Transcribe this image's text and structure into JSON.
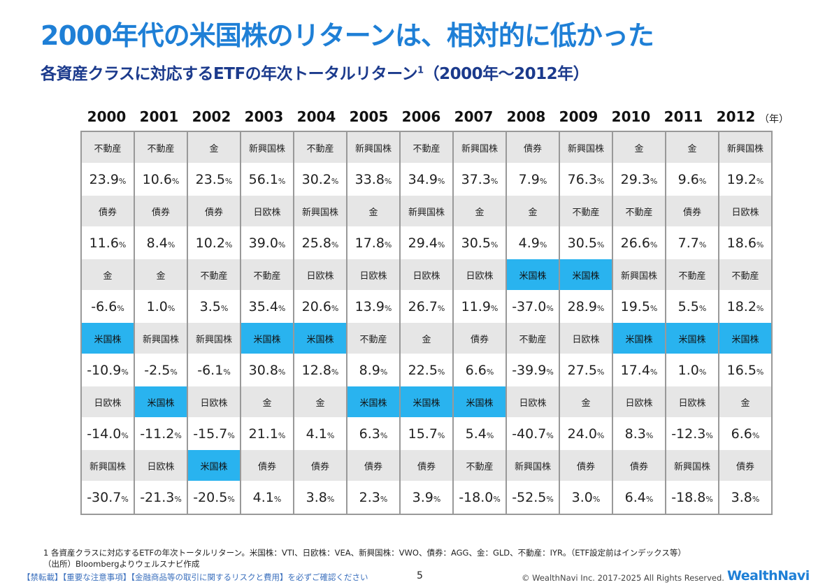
{
  "title": "2000年代の米国株のリターンは、相対的に低かった",
  "subtitle": "各資産クラスに対応するETFの年次トータルリターン",
  "subtitle_note": "1",
  "subtitle_range": "（2000年～2012年）",
  "year_unit": "（年）",
  "highlight_asset": "米国株",
  "highlight_color": "#29b3ef",
  "pct": "%",
  "years": [
    "2000",
    "2001",
    "2002",
    "2003",
    "2004",
    "2005",
    "2006",
    "2007",
    "2008",
    "2009",
    "2010",
    "2011",
    "2012"
  ],
  "columns": [
    [
      [
        "不動産",
        "23.9"
      ],
      [
        "債券",
        "11.6"
      ],
      [
        "金",
        "-6.6"
      ],
      [
        "米国株",
        "-10.9"
      ],
      [
        "日欧株",
        "-14.0"
      ],
      [
        "新興国株",
        "-30.7"
      ]
    ],
    [
      [
        "不動産",
        "10.6"
      ],
      [
        "債券",
        "8.4"
      ],
      [
        "金",
        "1.0"
      ],
      [
        "新興国株",
        "-2.5"
      ],
      [
        "米国株",
        "-11.2"
      ],
      [
        "日欧株",
        "-21.3"
      ]
    ],
    [
      [
        "金",
        "23.5"
      ],
      [
        "債券",
        "10.2"
      ],
      [
        "不動産",
        "3.5"
      ],
      [
        "新興国株",
        "-6.1"
      ],
      [
        "日欧株",
        "-15.7"
      ],
      [
        "米国株",
        "-20.5"
      ]
    ],
    [
      [
        "新興国株",
        "56.1"
      ],
      [
        "日欧株",
        "39.0"
      ],
      [
        "不動産",
        "35.4"
      ],
      [
        "米国株",
        "30.8"
      ],
      [
        "金",
        "21.1"
      ],
      [
        "債券",
        "4.1"
      ]
    ],
    [
      [
        "不動産",
        "30.2"
      ],
      [
        "新興国株",
        "25.8"
      ],
      [
        "日欧株",
        "20.6"
      ],
      [
        "米国株",
        "12.8"
      ],
      [
        "金",
        "4.1"
      ],
      [
        "債券",
        "3.8"
      ]
    ],
    [
      [
        "新興国株",
        "33.8"
      ],
      [
        "金",
        "17.8"
      ],
      [
        "日欧株",
        "13.9"
      ],
      [
        "不動産",
        "8.9"
      ],
      [
        "米国株",
        "6.3"
      ],
      [
        "債券",
        "2.3"
      ]
    ],
    [
      [
        "不動産",
        "34.9"
      ],
      [
        "新興国株",
        "29.4"
      ],
      [
        "日欧株",
        "26.7"
      ],
      [
        "金",
        "22.5"
      ],
      [
        "米国株",
        "15.7"
      ],
      [
        "債券",
        "3.9"
      ]
    ],
    [
      [
        "新興国株",
        "37.3"
      ],
      [
        "金",
        "30.5"
      ],
      [
        "日欧株",
        "11.9"
      ],
      [
        "債券",
        "6.6"
      ],
      [
        "米国株",
        "5.4"
      ],
      [
        "不動産",
        "-18.0"
      ]
    ],
    [
      [
        "債券",
        "7.9"
      ],
      [
        "金",
        "4.9"
      ],
      [
        "米国株",
        "-37.0"
      ],
      [
        "不動産",
        "-39.9"
      ],
      [
        "日欧株",
        "-40.7"
      ],
      [
        "新興国株",
        "-52.5"
      ]
    ],
    [
      [
        "新興国株",
        "76.3"
      ],
      [
        "不動産",
        "30.5"
      ],
      [
        "米国株",
        "28.9"
      ],
      [
        "日欧株",
        "27.5"
      ],
      [
        "金",
        "24.0"
      ],
      [
        "債券",
        "3.0"
      ]
    ],
    [
      [
        "金",
        "29.3"
      ],
      [
        "不動産",
        "26.6"
      ],
      [
        "新興国株",
        "19.5"
      ],
      [
        "米国株",
        "17.4"
      ],
      [
        "日欧株",
        "8.3"
      ],
      [
        "債券",
        "6.4"
      ]
    ],
    [
      [
        "金",
        "9.6"
      ],
      [
        "債券",
        "7.7"
      ],
      [
        "不動産",
        "5.5"
      ],
      [
        "米国株",
        "1.0"
      ],
      [
        "日欧株",
        "-12.3"
      ],
      [
        "新興国株",
        "-18.8"
      ]
    ],
    [
      [
        "新興国株",
        "19.2"
      ],
      [
        "日欧株",
        "18.6"
      ],
      [
        "不動産",
        "18.2"
      ],
      [
        "米国株",
        "16.5"
      ],
      [
        "金",
        "6.6"
      ],
      [
        "債券",
        "3.8"
      ]
    ]
  ],
  "footnote1": "1 各資産クラスに対応するETFの年次トータルリターン。米国株：VTI、日欧株：VEA、新興国株：VWO、債券：AGG、金：GLD、不動産：IYR。（ETF設定前はインデックス等）",
  "source": "（出所）Bloombergよりウェルスナビ作成",
  "legal": "【禁転載】【重要な注意事項】【金融商品等の取引に関するリスクと費用】を必ずご確認ください",
  "page_number": "5",
  "copyright": "© WealthNavi Inc. 2017-2025 All Rights Reserved.",
  "logo": "WealthNavi"
}
